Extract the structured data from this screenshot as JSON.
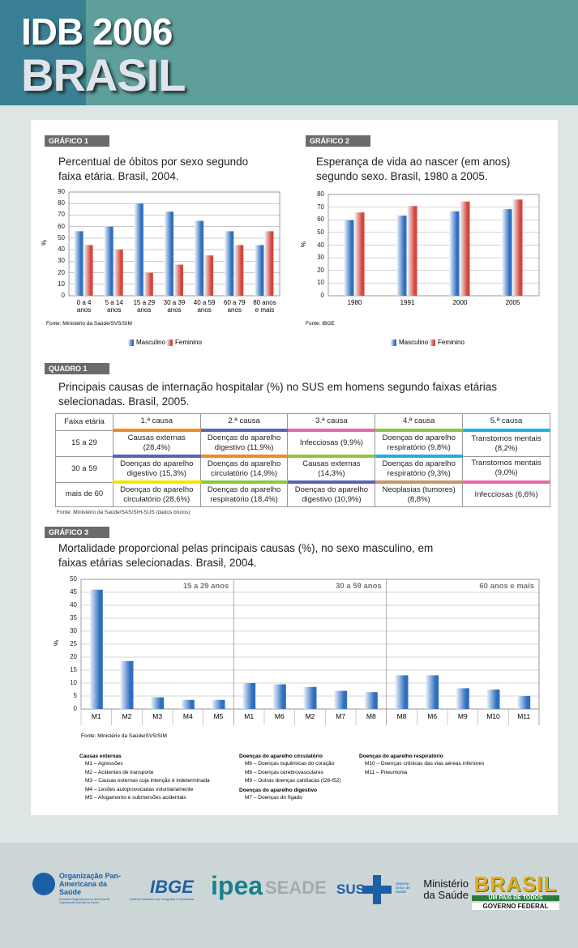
{
  "header": {
    "title": "IDB 2006",
    "subtitle": "BRASIL"
  },
  "chart_data": [
    {
      "type": "bar",
      "label": "GRÁFICO 1",
      "title": "Percentual de óbitos por sexo segundo faixa etária. Brasil, 2004.",
      "y_label": "%",
      "categories": [
        "0 a 4 anos",
        "5 a 14 anos",
        "15 a 29 anos",
        "30 a 39 anos",
        "40 a 59 anos",
        "60 a 79 anos",
        "80 anos e mais"
      ],
      "series": [
        {
          "name": "Masculino",
          "color": "#2f6fc0",
          "values": [
            56,
            60,
            80,
            73,
            65,
            56,
            44
          ]
        },
        {
          "name": "Feminino",
          "color": "#d6453a",
          "values": [
            44,
            40,
            20,
            27,
            35,
            44,
            56
          ]
        }
      ],
      "ylim": [
        0,
        90
      ],
      "yticks": [
        0,
        10,
        20,
        30,
        40,
        50,
        60,
        70,
        80,
        90
      ],
      "grid": true,
      "source": "Fonte: Ministério da Saúde/SVS/SIM"
    },
    {
      "type": "bar",
      "label": "GRÁFICO 2",
      "title": "Esperança de vida ao nascer (em anos) segundo sexo. Brasil, 1980 a 2005.",
      "y_label": "%",
      "categories": [
        "1980",
        "1991",
        "2000",
        "2005"
      ],
      "series": [
        {
          "name": "Masculino",
          "color": "#2f6fc0",
          "values": [
            59.6,
            63.3,
            66.7,
            68.4
          ]
        },
        {
          "name": "Feminino",
          "color": "#d6453a",
          "values": [
            65.8,
            70.9,
            74.4,
            76.0
          ]
        }
      ],
      "ylim": [
        0,
        80
      ],
      "yticks": [
        0,
        10,
        20,
        30,
        40,
        50,
        60,
        70,
        80
      ],
      "grid": true,
      "source": "Fonte: IBGE"
    },
    {
      "type": "bar",
      "label": "GRÁFICO 3",
      "title": "Mortalidade proporcional pelas principais causas (%), no sexo masculino, em faixas etárias selecionadas. Brasil, 2004.",
      "y_label": "%",
      "color": "#2f6fc0",
      "groups": [
        {
          "name": "15 a 29 anos",
          "categories": [
            "M1",
            "M2",
            "M3",
            "M4",
            "M5"
          ],
          "values": [
            46,
            18.5,
            4.5,
            3.5,
            3.5
          ]
        },
        {
          "name": "30 a 59 anos",
          "categories": [
            "M1",
            "M6",
            "M2",
            "M7",
            "M8"
          ],
          "values": [
            10,
            9.5,
            8.5,
            7,
            6.5
          ]
        },
        {
          "name": "60 anos e mais",
          "categories": [
            "M8",
            "M6",
            "M9",
            "M10",
            "M11"
          ],
          "values": [
            13,
            13,
            8,
            7.5,
            5
          ]
        }
      ],
      "ylim": [
        0,
        50
      ],
      "yticks": [
        0,
        5,
        10,
        15,
        20,
        25,
        30,
        35,
        40,
        45,
        50
      ],
      "grid": true,
      "source": "Fonte: Ministério da Saúde/SVS/SIM",
      "notes": [
        {
          "heading": "Causas externas",
          "items": [
            "M1 – Agressões",
            "M2 – Acidentes de transporte",
            "M3 – Causas externas cuja intenção é indeterminada",
            "M4 – Lesões autoprovocadas voluntariamente",
            "M5 – Afogamento e submersões acidentais"
          ]
        },
        {
          "heading": "Doenças do aparelho circulatório",
          "items": [
            "M6 – Doenças isquêmicas do coração",
            "M8 – Doenças cerebrovasculares",
            "M9 – Outras doenças cardíacas (I26-I52)"
          ]
        },
        {
          "heading": "Doenças do aparelho digestivo",
          "items": [
            "M7 – Doenças do fígado"
          ]
        },
        {
          "heading": "Doenças do aparelho respiratório",
          "items": [
            "M10 – Doenças crônicas das vias aéreas inferiores",
            "M11 – Pneumonia"
          ]
        }
      ]
    }
  ],
  "table": {
    "label": "QUADRO 1",
    "title": "Principais causas de internação hospitalar (%) no SUS em homens segundo faixas etárias selecionadas. Brasil, 2005.",
    "header": [
      "Faixa etária",
      "1.ª causa",
      "2.ª causa",
      "3.ª causa",
      "4.ª causa",
      "5.ª causa"
    ],
    "header_colors": [
      "#f08a24",
      "#5b64b4",
      "#e36aa8",
      "#8cc63f",
      "#1fb0e0"
    ],
    "rows": [
      [
        "15 a 29",
        "Causas externas (28,4%)",
        "Doenças do aparelho digestivo (11,9%)",
        "Infecciosas (9,9%)",
        "Doenças do aparelho respiratório (9,8%)",
        "Transtornos mentais (8,2%)"
      ],
      [
        "30 a 59",
        "Doenças do aparelho digestivo (15,3%)",
        "Doenças do aparelho circulatório (14,9%)",
        "Causas externas (14,3%)",
        "Doenças do aparelho respiratório (9,3%)",
        "Transtornos mentais (9,0%)"
      ],
      [
        "mais de 60",
        "Doenças do aparelho circulatório (28,6%)",
        "Doenças do aparelho respiratório (18,4%)",
        "Doenças do aparelho digestivo (10,9%)",
        "Neoplasias (tumores) (8,8%)",
        "Infecciosas (6,6%)"
      ]
    ],
    "row_colors": [
      [
        "#5b64b4",
        "#f08a24",
        "#8cc63f",
        "#1fb0e0"
      ],
      [
        "#f5e400",
        "#8cc63f",
        "#5b64b4",
        "#c8946c",
        "#e36aa8"
      ],
      []
    ],
    "source": "Fonte: Ministério da Saúde/SAS/SIH-SUS (dados brutos)"
  },
  "footer": {
    "opas": "Organização Pan-Americana da Saúde",
    "opas_sub": "Escritório Regional para as Américas da Organização Mundial da Saúde",
    "ibge": "IBGE",
    "ibge_sub": "Instituto Brasileiro de Geografia e Estatística",
    "ipea": "ipea",
    "seade": "SEADE",
    "sus": "SUS",
    "sus_sub": "Sistema Único de Saúde",
    "ministerio": "Ministério da Saúde",
    "brasil": "BRASIL",
    "brasil_sub": "UM PAÍS DE TODOS",
    "governo": "GOVERNO FEDERAL"
  }
}
